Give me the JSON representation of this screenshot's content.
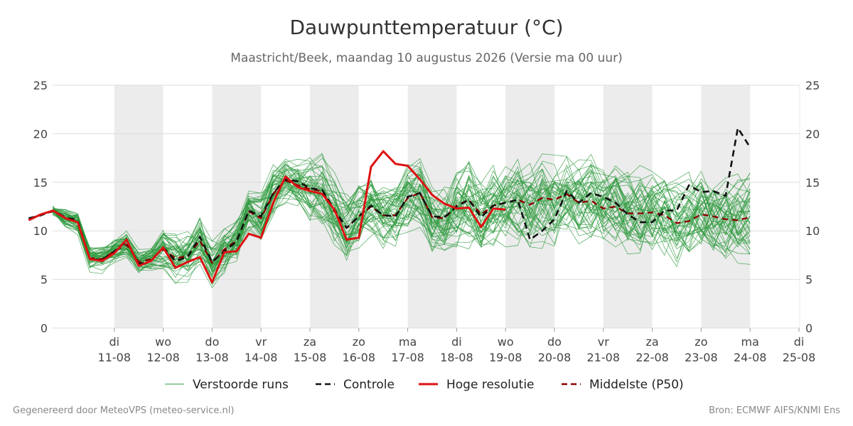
{
  "title": "Dauwpunttemperatuur (°C)",
  "subtitle": "Maastricht/Beek, maandag 10 augustus 2026 (Versie ma 00 uur)",
  "footer_left": "Gegenereerd door MeteoVPS (meteo-service.nl)",
  "footer_right": "Bron: ECMWF AIFS/KNMI Ens",
  "colors": {
    "ensemble": "#2e9a3e",
    "control": "#111111",
    "hires": "#dd1111",
    "median": "#8b0000",
    "shade": "#ececec",
    "grid": "#dddddd"
  },
  "chart_data": {
    "type": "line",
    "ylim": [
      0,
      25
    ],
    "yticks": [
      0,
      5,
      10,
      15,
      20,
      25
    ],
    "xlim": [
      0,
      14.75
    ],
    "x_unit": "days since 10-08 00:00",
    "grid": true,
    "legend_position": "bottom",
    "shaded_days": [
      [
        1,
        2
      ],
      [
        3,
        4
      ],
      [
        5,
        6
      ],
      [
        7,
        8
      ],
      [
        9,
        10
      ],
      [
        11,
        12
      ],
      [
        13,
        14
      ]
    ],
    "xticks": [
      {
        "x": 1,
        "day": "di",
        "date": "11-08"
      },
      {
        "x": 2,
        "day": "wo",
        "date": "12-08"
      },
      {
        "x": 3,
        "day": "do",
        "date": "13-08"
      },
      {
        "x": 4,
        "day": "vr",
        "date": "14-08"
      },
      {
        "x": 5,
        "day": "za",
        "date": "15-08"
      },
      {
        "x": 6,
        "day": "zo",
        "date": "16-08"
      },
      {
        "x": 7,
        "day": "ma",
        "date": "17-08"
      },
      {
        "x": 8,
        "day": "di",
        "date": "18-08"
      },
      {
        "x": 9,
        "day": "wo",
        "date": "19-08"
      },
      {
        "x": 10,
        "day": "do",
        "date": "20-08"
      },
      {
        "x": 11,
        "day": "vr",
        "date": "21-08"
      },
      {
        "x": 12,
        "day": "za",
        "date": "22-08"
      },
      {
        "x": 13,
        "day": "zo",
        "date": "23-08"
      },
      {
        "x": 14,
        "day": "ma",
        "date": "24-08"
      },
      {
        "x": 15,
        "day": "di",
        "date": "25-08"
      }
    ],
    "time_step_days": 0.25,
    "legend": [
      {
        "label": "Verstoorde runs",
        "key": "ensemble",
        "style": "thin"
      },
      {
        "label": "Controle",
        "key": "control",
        "style": "dashed"
      },
      {
        "label": "Hoge resolutie",
        "key": "hires",
        "style": "solid"
      },
      {
        "label": "Middelste (P50)",
        "key": "median",
        "style": "dashed"
      }
    ],
    "series": [
      {
        "name": "Controle",
        "key": "control",
        "start": -0.75,
        "values": [
          11.3,
          11.6,
          12.1,
          11.4,
          11.1,
          7.1,
          7.0,
          7.9,
          8.9,
          6.6,
          6.9,
          8.3,
          6.9,
          7.3,
          9.4,
          6.8,
          7.9,
          8.9,
          12.1,
          11.5,
          13.9,
          15.3,
          15.1,
          14.4,
          14.2,
          12.2,
          10.3,
          11.5,
          12.6,
          11.6,
          11.5,
          13.5,
          13.9,
          11.5,
          11.4,
          12.5,
          13.2,
          11.4,
          12.6,
          12.9,
          13.2,
          9.1,
          10.0,
          11.2,
          14.1,
          12.9,
          13.9,
          13.5,
          12.9,
          11.7,
          10.9,
          10.9,
          12.1,
          12.1,
          14.7,
          14.0,
          14.1,
          13.6,
          20.6,
          18.6
        ]
      },
      {
        "name": "Hoge resolutie",
        "key": "hires",
        "start": -0.75,
        "values": [
          11.1,
          11.7,
          12.1,
          11.3,
          10.9,
          7.1,
          6.9,
          7.7,
          9.1,
          6.4,
          6.9,
          8.3,
          6.2,
          6.8,
          7.3,
          4.7,
          7.8,
          7.9,
          9.7,
          9.3,
          12.9,
          15.6,
          14.5,
          14.1,
          13.8,
          12.2,
          9.1,
          9.3,
          16.6,
          18.2,
          16.9,
          16.7,
          15.3,
          13.7,
          12.8,
          12.3,
          12.4,
          10.4,
          12.3,
          12.2
        ]
      },
      {
        "name": "Middelste (P50)",
        "key": "median",
        "start": -0.75,
        "values": [
          11.2,
          11.7,
          12.0,
          11.3,
          10.9,
          7.2,
          7.1,
          7.9,
          8.6,
          6.8,
          7.1,
          8.1,
          7.2,
          7.4,
          9.0,
          6.7,
          8.1,
          9.0,
          12.0,
          11.3,
          13.8,
          15.2,
          14.7,
          14.3,
          14.1,
          12.0,
          10.3,
          11.5,
          12.5,
          11.6,
          11.6,
          13.4,
          13.9,
          11.4,
          11.3,
          12.6,
          13.2,
          11.7,
          12.6,
          12.9,
          13.2,
          12.7,
          13.4,
          13.2,
          13.8,
          12.9,
          13.1,
          12.3,
          12.5,
          11.8,
          11.8,
          11.9,
          11.6,
          10.8,
          11.0,
          11.7,
          11.5,
          11.2,
          11.1,
          11.4
        ]
      }
    ]
  }
}
